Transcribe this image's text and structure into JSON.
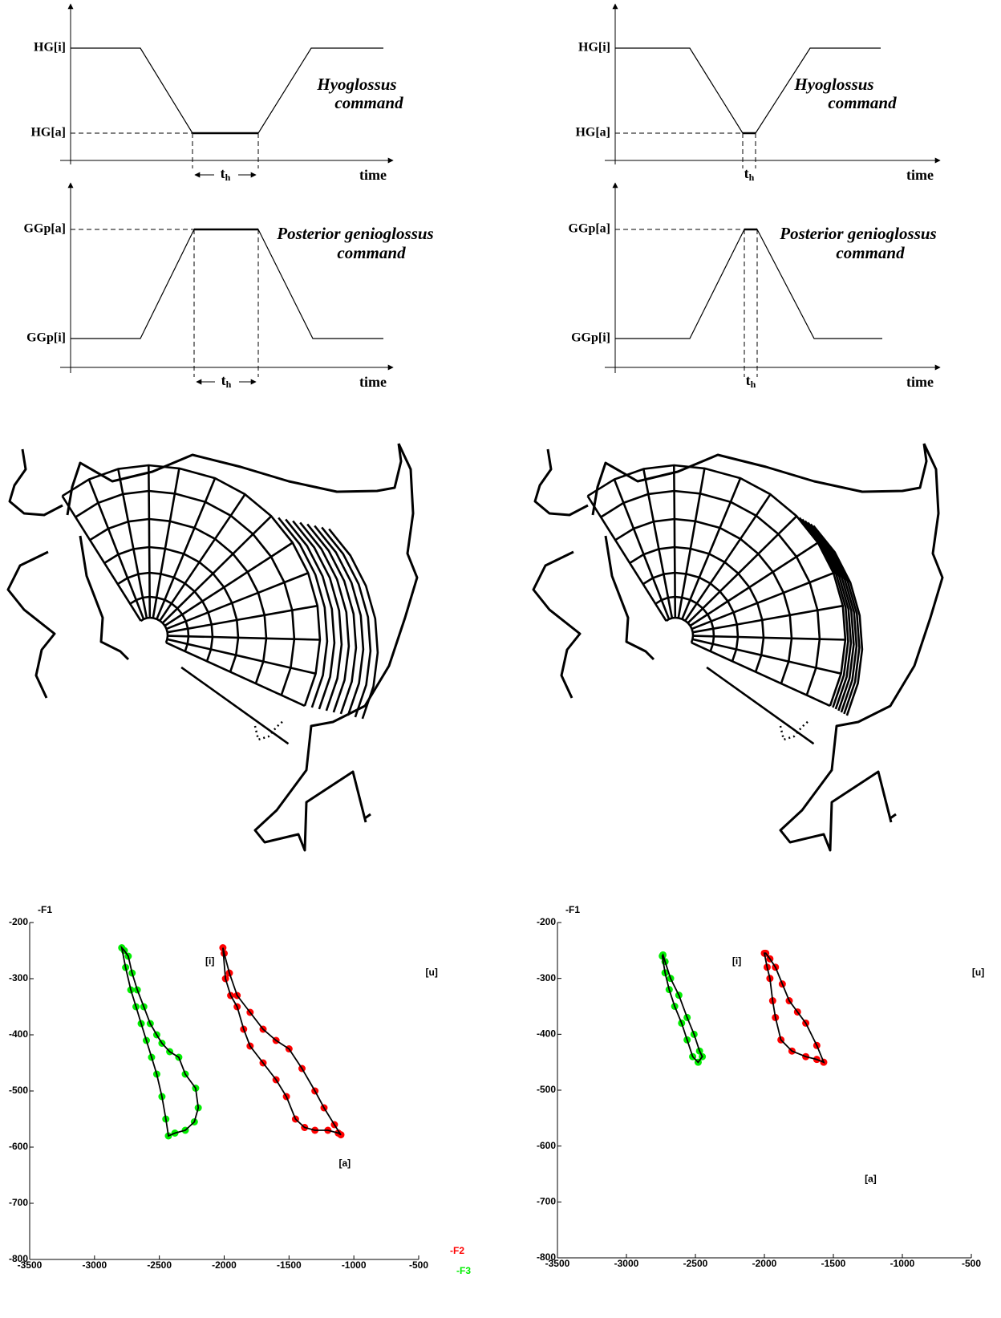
{
  "timing_diagrams": [
    {
      "hyoglossus": {
        "levels": [
          "HG[i]",
          "HG[a]"
        ],
        "title": [
          "Hyoglossus",
          "command"
        ],
        "t": "t",
        "t_sub": "h",
        "axis": "time"
      },
      "genioglossus": {
        "levels": [
          "GGp[a]",
          "GGp[i]"
        ],
        "title": [
          "Posterior genioglossus",
          "command"
        ],
        "t": "t",
        "t_sub": "h",
        "axis": "time"
      }
    },
    {
      "hyoglossus": {
        "levels": [
          "HG[i]",
          "HG[a]"
        ],
        "title": [
          "Hyoglossus",
          "command"
        ],
        "t": "t",
        "t_sub": "h",
        "axis": "time"
      },
      "genioglossus": {
        "levels": [
          "GGp[a]",
          "GGp[i]"
        ],
        "title": [
          "Posterior genioglossus",
          "command"
        ],
        "t": "t",
        "t_sub": "h",
        "axis": "time"
      }
    }
  ],
  "chart_data": [
    {
      "type": "line",
      "y_label": "-F1",
      "xlim": [
        -3500,
        -500
      ],
      "ylim": [
        -800,
        -200
      ],
      "xticks": [
        -3500,
        -3000,
        -2500,
        -2000,
        -1500,
        -1000,
        -500
      ],
      "yticks": [
        -800,
        -700,
        -600,
        -500,
        -400,
        -300,
        -200
      ],
      "legend": "lower right",
      "series": [
        {
          "name": "-F2",
          "color": "#ff0000",
          "x": [
            -2010,
            -1990,
            -1950,
            -1900,
            -1850,
            -1800,
            -1700,
            -1600,
            -1520,
            -1450,
            -1380,
            -1300,
            -1200,
            -1120,
            -1100,
            -1150,
            -1230,
            -1300,
            -1400,
            -1500,
            -1600,
            -1700,
            -1800,
            -1900,
            -1960,
            -2000
          ],
          "values": [
            -245,
            -300,
            -330,
            -350,
            -390,
            -420,
            -450,
            -480,
            -510,
            -550,
            -565,
            -570,
            -570,
            -575,
            -578,
            -560,
            -530,
            -500,
            -460,
            -425,
            -410,
            -390,
            -360,
            -330,
            -290,
            -255
          ]
        },
        {
          "name": "-F3",
          "color": "#00ee00",
          "x": [
            -2790,
            -2760,
            -2720,
            -2680,
            -2640,
            -2600,
            -2560,
            -2520,
            -2480,
            -2450,
            -2430,
            -2380,
            -2300,
            -2230,
            -2200,
            -2220,
            -2300,
            -2350,
            -2420,
            -2480,
            -2520,
            -2570,
            -2620,
            -2670,
            -2710,
            -2740,
            -2770
          ],
          "values": [
            -245,
            -280,
            -320,
            -350,
            -380,
            -410,
            -440,
            -470,
            -510,
            -550,
            -580,
            -575,
            -570,
            -555,
            -530,
            -495,
            -470,
            -440,
            -430,
            -415,
            -400,
            -380,
            -350,
            -320,
            -290,
            -260,
            -250
          ]
        }
      ],
      "annotations": [
        {
          "text": "[i]",
          "x": -2110,
          "y": -270
        },
        {
          "text": "[u]",
          "x": -400,
          "y": -290
        },
        {
          "text": "[a]",
          "x": -1070,
          "y": -630
        }
      ]
    },
    {
      "type": "line",
      "y_label": "-F1",
      "xlim": [
        -3500,
        -500
      ],
      "ylim": [
        -800,
        -200
      ],
      "xticks": [
        -3500,
        -3000,
        -2500,
        -2000,
        -1500,
        -1000,
        -500
      ],
      "yticks": [
        -800,
        -700,
        -600,
        -500,
        -400,
        -300,
        -200
      ],
      "series": [
        {
          "color": "#ff0000",
          "x": [
            -2000,
            -1980,
            -1960,
            -1940,
            -1920,
            -1880,
            -1800,
            -1700,
            -1620,
            -1570,
            -1620,
            -1700,
            -1760,
            -1820,
            -1870,
            -1920,
            -1960,
            -1990
          ],
          "values": [
            -255,
            -280,
            -300,
            -340,
            -370,
            -410,
            -430,
            -440,
            -445,
            -450,
            -420,
            -380,
            -360,
            -340,
            -310,
            -280,
            -265,
            -255
          ]
        },
        {
          "color": "#00ee00",
          "x": [
            -2740,
            -2720,
            -2690,
            -2650,
            -2600,
            -2560,
            -2520,
            -2480,
            -2450,
            -2470,
            -2510,
            -2560,
            -2620,
            -2680,
            -2720,
            -2735
          ],
          "values": [
            -260,
            -290,
            -320,
            -350,
            -380,
            -410,
            -440,
            -450,
            -440,
            -430,
            -400,
            -370,
            -330,
            -300,
            -270,
            -258
          ]
        }
      ],
      "annotations": [
        {
          "text": "[i]",
          "x": -2200,
          "y": -270
        },
        {
          "text": "[u]",
          "x": -450,
          "y": -290
        },
        {
          "text": "[a]",
          "x": -1230,
          "y": -660
        }
      ]
    }
  ]
}
